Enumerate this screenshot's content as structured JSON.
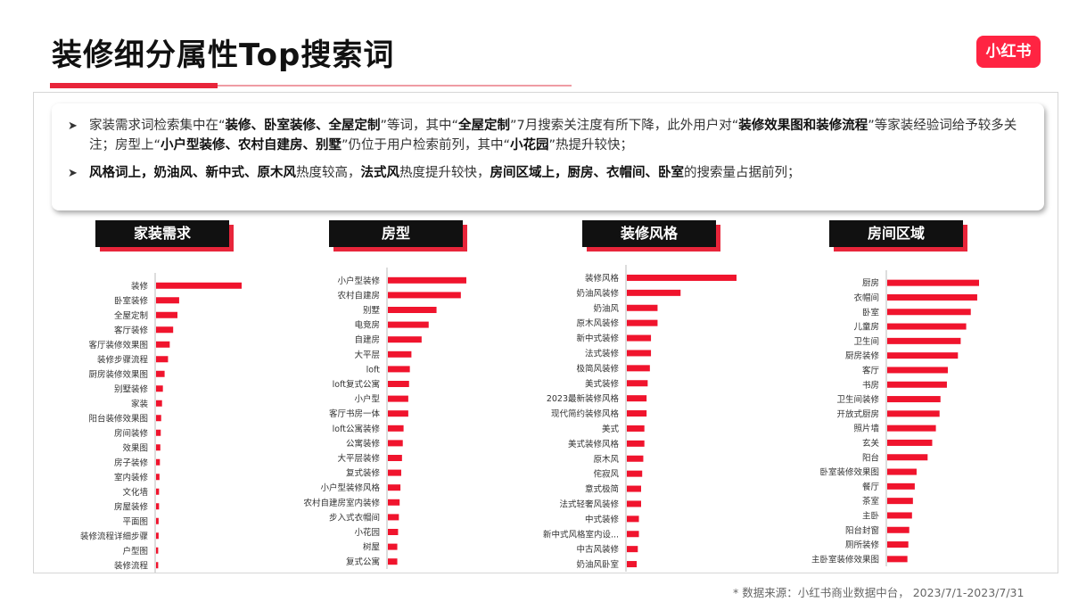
{
  "title": "装修细分属性Top搜索词",
  "logo": "小红书",
  "summary": {
    "b1": [
      {
        "t": "家装需求词检索集中在“",
        "b": false
      },
      {
        "t": "装修、卧室装修、全屋定制",
        "b": true
      },
      {
        "t": "”等词，其中“",
        "b": false
      },
      {
        "t": "全屋定制",
        "b": true
      },
      {
        "t": "”7月搜索关注度有所下降，此外用户对“",
        "b": false
      },
      {
        "t": "装修效果图和装修流程",
        "b": true
      },
      {
        "t": "”等家装经验词给予较多关注；房型上“",
        "b": false
      },
      {
        "t": "小户型装修、农村自建房、别墅",
        "b": true
      },
      {
        "t": "”仍位于用户检索前列，其中“",
        "b": false
      },
      {
        "t": "小花园",
        "b": true
      },
      {
        "t": "”热提升较快；",
        "b": false
      }
    ],
    "b2": [
      {
        "t": "风格词上，奶油风、新中式、原木风",
        "b": true
      },
      {
        "t": "热度较高，",
        "b": false
      },
      {
        "t": "法式风",
        "b": true
      },
      {
        "t": "热度提升较快，",
        "b": false
      },
      {
        "t": "房间区域上，厨房、衣帽间、卧室",
        "b": true
      },
      {
        "t": "的搜索量占据前列；",
        "b": false
      }
    ]
  },
  "footnote": "* 数据来源：小红书商业数据中台，  2023/7/1-2023/7/31",
  "colors": {
    "bar": "#f0142d",
    "accent": "#e8253a",
    "tag_bg": "#111111"
  },
  "chart_data": [
    {
      "type": "bar",
      "orientation": "horizontal",
      "title": "家装需求",
      "categories": [
        "装修",
        "卧室装修",
        "全屋定制",
        "客厅装修",
        "客厅装修效果图",
        "装修步骤流程",
        "厨房装修效果图",
        "别墅装修",
        "家装",
        "阳台装修效果图",
        "房间装修",
        "效果图",
        "房子装修",
        "室内装修",
        "文化墙",
        "房屋装修",
        "平面图",
        "装修流程详细步骤",
        "户型图",
        "装修流程"
      ],
      "values": [
        100,
        27,
        25,
        20,
        16,
        14,
        10,
        8,
        7,
        6,
        5.5,
        5,
        4.5,
        4,
        3.5,
        3.5,
        3,
        3,
        2.5,
        2.5
      ]
    },
    {
      "type": "bar",
      "orientation": "horizontal",
      "title": "房型",
      "categories": [
        "小户型装修",
        "农村自建房",
        "别墅",
        "电竞房",
        "自建房",
        "大平层",
        "loft",
        "loft复式公寓",
        "小户型",
        "客厅书房一体",
        "loft公寓装修",
        "公寓装修",
        "大平层装修",
        "复式装修",
        "小户型装修风格",
        "农村自建房室内装修",
        "步入式衣帽间",
        "小花园",
        "树屋",
        "复式公寓"
      ],
      "values": [
        100,
        93,
        62,
        52,
        43,
        30,
        28,
        27,
        26,
        26,
        20,
        19,
        18,
        17,
        16,
        15,
        14,
        13,
        12,
        12
      ]
    },
    {
      "type": "bar",
      "orientation": "horizontal",
      "title": "装修风格",
      "categories": [
        "装修风格",
        "奶油风装修",
        "奶油风",
        "原木风装修",
        "新中式装修",
        "法式装修",
        "极简风装修",
        "美式装修",
        "2023最新装修风格",
        "现代简约装修风格",
        "美式",
        "美式装修风格",
        "原木风",
        "侘寂风",
        "意式极简",
        "法式轻奢风装修",
        "中式装修",
        "新中式风格室内设...",
        "中古风装修",
        "奶油风卧室"
      ],
      "values": [
        100,
        49,
        28,
        28,
        22,
        22,
        21,
        19,
        18,
        18,
        16,
        16,
        15,
        14,
        13,
        13,
        11,
        11,
        10,
        9
      ]
    },
    {
      "type": "bar",
      "orientation": "horizontal",
      "title": "房间区域",
      "categories": [
        "厨房",
        "衣帽间",
        "卧室",
        "儿童房",
        "卫生间",
        "厨房装修",
        "客厅",
        "书房",
        "卫生间装修",
        "开放式厨房",
        "照片墙",
        "玄关",
        "阳台",
        "卧室装修效果图",
        "餐厅",
        "茶室",
        "主卧",
        "阳台封窗",
        "厕所装修",
        "主卧室装修效果图"
      ],
      "values": [
        100,
        98,
        91,
        86,
        80,
        77,
        66,
        65,
        58,
        57,
        53,
        49,
        44,
        32,
        30,
        28,
        27,
        24,
        23,
        22
      ]
    }
  ]
}
